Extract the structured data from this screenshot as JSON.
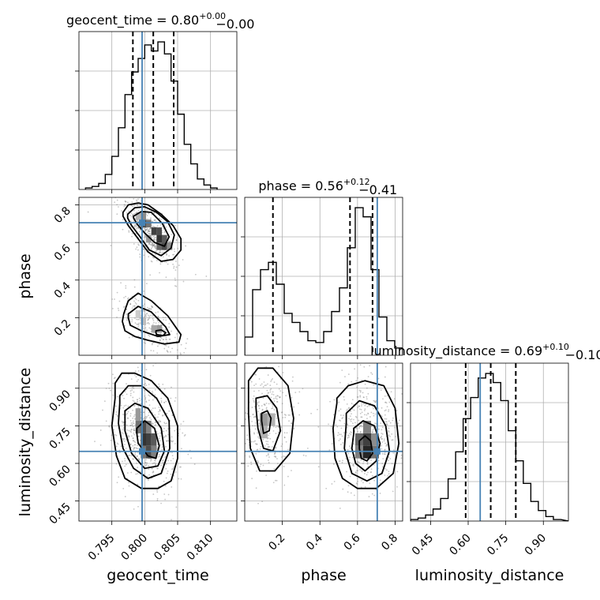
{
  "chart_data": {
    "type": "corner",
    "parameters": [
      "geocent_time",
      "phase",
      "luminosity_distance"
    ],
    "truths": {
      "geocent_time": 0.7996,
      "phase": 0.705,
      "luminosity_distance": 0.648
    },
    "colors": {
      "truth": "#4682b4",
      "contour": "#000000",
      "hist": "#000000",
      "grid": "#b0b0b0",
      "points": "#808080"
    },
    "titles": [
      {
        "param": "geocent_time",
        "text": "geocent_time = 0.80",
        "sup": "+0.00",
        "sub": "−0.00"
      },
      {
        "param": "phase",
        "text": "phase = 0.56",
        "sup": "+0.12",
        "sub": "−0.41"
      },
      {
        "param": "luminosity_distance",
        "text": "luminosity_distance = 0.69",
        "sup": "+0.10",
        "sub": "−0.10"
      }
    ],
    "axis_labels": {
      "x": [
        "geocent_time",
        "phase",
        "luminosity_distance"
      ],
      "y": [
        "phase",
        "luminosity_distance"
      ]
    },
    "ranges": {
      "geocent_time": [
        0.79,
        0.814
      ],
      "phase": [
        0.0,
        0.84
      ],
      "luminosity_distance": [
        0.37,
        1.0
      ]
    },
    "ticks": {
      "geocent_time": {
        "values": [
          0.795,
          0.8,
          0.805,
          0.81
        ],
        "labels": [
          "0.795",
          "0.800",
          "0.805",
          "0.810"
        ]
      },
      "phase_x": {
        "values": [
          0.2,
          0.4,
          0.6,
          0.8
        ],
        "labels": [
          "0.2",
          "0.4",
          "0.6",
          "0.8"
        ]
      },
      "phase_y": {
        "values": [
          0.2,
          0.4,
          0.6,
          0.8
        ],
        "labels": [
          "0.2",
          "0.4",
          "0.6",
          "0.8"
        ]
      },
      "luminosity_distance": {
        "values": [
          0.45,
          0.6,
          0.75,
          0.9
        ],
        "labels": [
          "0.45",
          "0.60",
          "0.75",
          "0.90"
        ]
      }
    },
    "quantiles": {
      "geocent_time": [
        0.7982,
        0.8013,
        0.8044
      ],
      "phase": [
        0.15,
        0.56,
        0.68
      ],
      "luminosity_distance": [
        0.59,
        0.69,
        0.79
      ]
    },
    "hist_geocent_time": {
      "bins": [
        0.791,
        0.792,
        0.793,
        0.794,
        0.795,
        0.796,
        0.797,
        0.798,
        0.799,
        0.8,
        0.801,
        0.802,
        0.803,
        0.804,
        0.805,
        0.806,
        0.807,
        0.808,
        0.809,
        0.81
      ],
      "counts": [
        1,
        2,
        4,
        10,
        22,
        41,
        63,
        78,
        87,
        96,
        92,
        98,
        90,
        72,
        50,
        30,
        17,
        7,
        3,
        1
      ]
    },
    "hist_phase": {
      "bins": [
        0.0,
        0.042,
        0.084,
        0.126,
        0.168,
        0.21,
        0.252,
        0.294,
        0.336,
        0.378,
        0.42,
        0.462,
        0.504,
        0.546,
        0.588,
        0.63,
        0.672,
        0.714,
        0.756,
        0.798
      ],
      "counts": [
        10,
        36,
        47,
        51,
        39,
        23,
        18,
        13,
        8,
        7,
        13,
        24,
        37,
        59,
        81,
        76,
        47,
        21,
        8,
        4
      ]
    },
    "hist_luminosity_distance": {
      "bins": [
        0.37,
        0.4,
        0.43,
        0.46,
        0.49,
        0.52,
        0.55,
        0.58,
        0.61,
        0.64,
        0.67,
        0.7,
        0.73,
        0.76,
        0.79,
        0.82,
        0.85,
        0.88,
        0.91,
        0.94,
        0.97
      ],
      "counts": [
        1,
        2,
        4,
        8,
        15,
        28,
        46,
        68,
        82,
        95,
        98,
        92,
        80,
        60,
        40,
        25,
        13,
        7,
        3,
        1
      ]
    },
    "contours": {
      "phase_vs_geocent_time": [
        {
          "x": [
            0.7967,
            0.7975,
            0.799,
            0.8005,
            0.8025,
            0.8043,
            0.8055,
            0.8055,
            0.8043,
            0.8025,
            0.8005,
            0.799,
            0.7975,
            0.7967
          ],
          "y": [
            0.76,
            0.8,
            0.81,
            0.8,
            0.75,
            0.69,
            0.62,
            0.56,
            0.51,
            0.5,
            0.55,
            0.62,
            0.69,
            0.74
          ]
        },
        {
          "x": [
            0.7974,
            0.7985,
            0.8,
            0.8018,
            0.8035,
            0.8045,
            0.804,
            0.8025,
            0.8007,
            0.7993,
            0.798,
            0.7974
          ],
          "y": [
            0.75,
            0.785,
            0.79,
            0.76,
            0.71,
            0.64,
            0.57,
            0.53,
            0.56,
            0.63,
            0.69,
            0.73
          ]
        },
        {
          "x": [
            0.7983,
            0.7995,
            0.801,
            0.8027,
            0.8037,
            0.803,
            0.8015,
            0.8,
            0.7988,
            0.7983
          ],
          "y": [
            0.74,
            0.765,
            0.76,
            0.7,
            0.63,
            0.58,
            0.6,
            0.65,
            0.7,
            0.73
          ]
        },
        {
          "x": [
            0.7968,
            0.7975,
            0.799,
            0.801,
            0.8035,
            0.8055,
            0.8052,
            0.803,
            0.8005,
            0.7985,
            0.797,
            0.7966
          ],
          "y": [
            0.22,
            0.29,
            0.33,
            0.29,
            0.21,
            0.11,
            0.07,
            0.06,
            0.08,
            0.1,
            0.13,
            0.18
          ]
        },
        {
          "x": [
            0.7975,
            0.799,
            0.801,
            0.8032,
            0.8038,
            0.802,
            0.7995,
            0.7978,
            0.7975
          ],
          "y": [
            0.22,
            0.26,
            0.23,
            0.15,
            0.11,
            0.1,
            0.13,
            0.16,
            0.2
          ]
        },
        {
          "x": [
            0.8017,
            0.8025,
            0.8032,
            0.8028,
            0.8018,
            0.8017
          ],
          "y": [
            0.13,
            0.135,
            0.12,
            0.105,
            0.11,
            0.12
          ]
        }
      ],
      "luminosity_distance_vs_geocent_time": [
        {
          "x": [
            0.7955,
            0.7965,
            0.7985,
            0.801,
            0.8035,
            0.805,
            0.805,
            0.804,
            0.802,
            0.7995,
            0.797,
            0.7957,
            0.795,
            0.7955
          ],
          "y": [
            0.92,
            0.96,
            0.96,
            0.93,
            0.86,
            0.75,
            0.62,
            0.53,
            0.5,
            0.5,
            0.54,
            0.63,
            0.75,
            0.86
          ]
        },
        {
          "x": [
            0.7962,
            0.7975,
            0.7995,
            0.8018,
            0.8037,
            0.8038,
            0.8025,
            0.8005,
            0.7983,
            0.7967,
            0.796,
            0.7962
          ],
          "y": [
            0.87,
            0.91,
            0.91,
            0.86,
            0.77,
            0.66,
            0.56,
            0.54,
            0.58,
            0.66,
            0.76,
            0.84
          ]
        },
        {
          "x": [
            0.797,
            0.7985,
            0.8005,
            0.8025,
            0.803,
            0.802,
            0.8,
            0.798,
            0.797
          ],
          "y": [
            0.81,
            0.84,
            0.82,
            0.74,
            0.65,
            0.59,
            0.58,
            0.64,
            0.73
          ]
        },
        {
          "x": [
            0.7988,
            0.8,
            0.8015,
            0.8022,
            0.8017,
            0.8005,
            0.799,
            0.7988
          ],
          "y": [
            0.74,
            0.77,
            0.74,
            0.67,
            0.62,
            0.63,
            0.68,
            0.72
          ]
        }
      ],
      "luminosity_distance_vs_phase": [
        {
          "x": [
            0.02,
            0.07,
            0.15,
            0.23,
            0.26,
            0.24,
            0.16,
            0.08,
            0.03,
            0.02
          ],
          "y": [
            0.93,
            0.98,
            0.98,
            0.91,
            0.78,
            0.64,
            0.57,
            0.57,
            0.66,
            0.8
          ]
        },
        {
          "x": [
            0.06,
            0.12,
            0.17,
            0.19,
            0.15,
            0.1,
            0.07,
            0.06
          ],
          "y": [
            0.86,
            0.87,
            0.82,
            0.73,
            0.65,
            0.66,
            0.74,
            0.82
          ]
        },
        {
          "x": [
            0.09,
            0.12,
            0.14,
            0.13,
            0.1,
            0.09
          ],
          "y": [
            0.8,
            0.81,
            0.78,
            0.73,
            0.72,
            0.77
          ]
        },
        {
          "x": [
            0.49,
            0.55,
            0.64,
            0.74,
            0.8,
            0.82,
            0.79,
            0.7,
            0.6,
            0.52,
            0.48,
            0.47,
            0.49
          ],
          "y": [
            0.86,
            0.91,
            0.93,
            0.91,
            0.82,
            0.68,
            0.56,
            0.5,
            0.5,
            0.54,
            0.62,
            0.74,
            0.84
          ]
        },
        {
          "x": [
            0.54,
            0.61,
            0.69,
            0.75,
            0.77,
            0.73,
            0.65,
            0.57,
            0.53,
            0.54
          ],
          "y": [
            0.8,
            0.85,
            0.83,
            0.75,
            0.65,
            0.56,
            0.53,
            0.56,
            0.66,
            0.76
          ]
        },
        {
          "x": [
            0.58,
            0.63,
            0.69,
            0.72,
            0.7,
            0.64,
            0.59,
            0.57,
            0.58
          ],
          "y": [
            0.74,
            0.77,
            0.75,
            0.68,
            0.61,
            0.57,
            0.6,
            0.66,
            0.72
          ]
        },
        {
          "x": [
            0.61,
            0.64,
            0.67,
            0.68,
            0.65,
            0.62,
            0.61
          ],
          "y": [
            0.69,
            0.71,
            0.69,
            0.64,
            0.61,
            0.62,
            0.66
          ]
        }
      ]
    },
    "density_cells": {
      "phase_vs_geocent_time": [
        {
          "x": 0.7994,
          "y": 0.72,
          "w": 0.0008,
          "h": 0.04,
          "v": 0.45
        },
        {
          "x": 0.7994,
          "y": 0.68,
          "w": 0.0008,
          "h": 0.04,
          "v": 0.7
        },
        {
          "x": 0.8002,
          "y": 0.68,
          "w": 0.0008,
          "h": 0.04,
          "v": 0.55
        },
        {
          "x": 0.801,
          "y": 0.64,
          "w": 0.0008,
          "h": 0.04,
          "v": 0.75
        },
        {
          "x": 0.8018,
          "y": 0.64,
          "w": 0.0008,
          "h": 0.04,
          "v": 0.7
        },
        {
          "x": 0.8018,
          "y": 0.6,
          "w": 0.0008,
          "h": 0.04,
          "v": 0.8
        },
        {
          "x": 0.8026,
          "y": 0.6,
          "w": 0.0008,
          "h": 0.04,
          "v": 0.65
        },
        {
          "x": 0.8018,
          "y": 0.56,
          "w": 0.0008,
          "h": 0.04,
          "v": 0.6
        },
        {
          "x": 0.8026,
          "y": 0.56,
          "w": 0.0008,
          "h": 0.04,
          "v": 0.7
        },
        {
          "x": 0.8034,
          "y": 0.56,
          "w": 0.0008,
          "h": 0.04,
          "v": 0.45
        },
        {
          "x": 0.8002,
          "y": 0.6,
          "w": 0.0008,
          "h": 0.04,
          "v": 0.4
        },
        {
          "x": 0.7986,
          "y": 0.72,
          "w": 0.0008,
          "h": 0.04,
          "v": 0.3
        },
        {
          "x": 0.801,
          "y": 0.12,
          "w": 0.0008,
          "h": 0.04,
          "v": 0.35
        },
        {
          "x": 0.8018,
          "y": 0.12,
          "w": 0.0008,
          "h": 0.04,
          "v": 0.4
        },
        {
          "x": 0.7994,
          "y": 0.16,
          "w": 0.0008,
          "h": 0.04,
          "v": 0.25
        },
        {
          "x": 0.7986,
          "y": 0.2,
          "w": 0.0008,
          "h": 0.04,
          "v": 0.2
        }
      ],
      "luminosity_distance_vs_geocent_time": [
        {
          "x": 0.7986,
          "y": 0.72,
          "w": 0.0008,
          "h": 0.05,
          "v": 0.55
        },
        {
          "x": 0.7994,
          "y": 0.72,
          "w": 0.0008,
          "h": 0.05,
          "v": 0.7
        },
        {
          "x": 0.8002,
          "y": 0.67,
          "w": 0.0008,
          "h": 0.05,
          "v": 0.75
        },
        {
          "x": 0.801,
          "y": 0.67,
          "w": 0.0008,
          "h": 0.05,
          "v": 0.65
        },
        {
          "x": 0.7994,
          "y": 0.67,
          "w": 0.0008,
          "h": 0.05,
          "v": 0.8
        },
        {
          "x": 0.8002,
          "y": 0.62,
          "w": 0.0008,
          "h": 0.05,
          "v": 0.7
        },
        {
          "x": 0.7994,
          "y": 0.62,
          "w": 0.0008,
          "h": 0.05,
          "v": 0.55
        },
        {
          "x": 0.801,
          "y": 0.62,
          "w": 0.0008,
          "h": 0.05,
          "v": 0.5
        },
        {
          "x": 0.7986,
          "y": 0.77,
          "w": 0.0008,
          "h": 0.05,
          "v": 0.4
        },
        {
          "x": 0.8002,
          "y": 0.72,
          "w": 0.0008,
          "h": 0.05,
          "v": 0.5
        }
      ],
      "luminosity_distance_vs_phase": [
        {
          "x": 0.08,
          "y": 0.75,
          "w": 0.042,
          "h": 0.05,
          "v": 0.4
        },
        {
          "x": 0.12,
          "y": 0.75,
          "w": 0.042,
          "h": 0.05,
          "v": 0.3
        },
        {
          "x": 0.08,
          "y": 0.7,
          "w": 0.042,
          "h": 0.05,
          "v": 0.3
        },
        {
          "x": 0.588,
          "y": 0.67,
          "w": 0.042,
          "h": 0.05,
          "v": 0.6
        },
        {
          "x": 0.63,
          "y": 0.67,
          "w": 0.042,
          "h": 0.05,
          "v": 0.75
        },
        {
          "x": 0.63,
          "y": 0.62,
          "w": 0.042,
          "h": 0.05,
          "v": 0.85
        },
        {
          "x": 0.672,
          "y": 0.62,
          "w": 0.042,
          "h": 0.05,
          "v": 0.55
        },
        {
          "x": 0.588,
          "y": 0.62,
          "w": 0.042,
          "h": 0.05,
          "v": 0.5
        },
        {
          "x": 0.63,
          "y": 0.72,
          "w": 0.042,
          "h": 0.05,
          "v": 0.5
        },
        {
          "x": 0.672,
          "y": 0.67,
          "w": 0.042,
          "h": 0.05,
          "v": 0.45
        }
      ]
    }
  }
}
